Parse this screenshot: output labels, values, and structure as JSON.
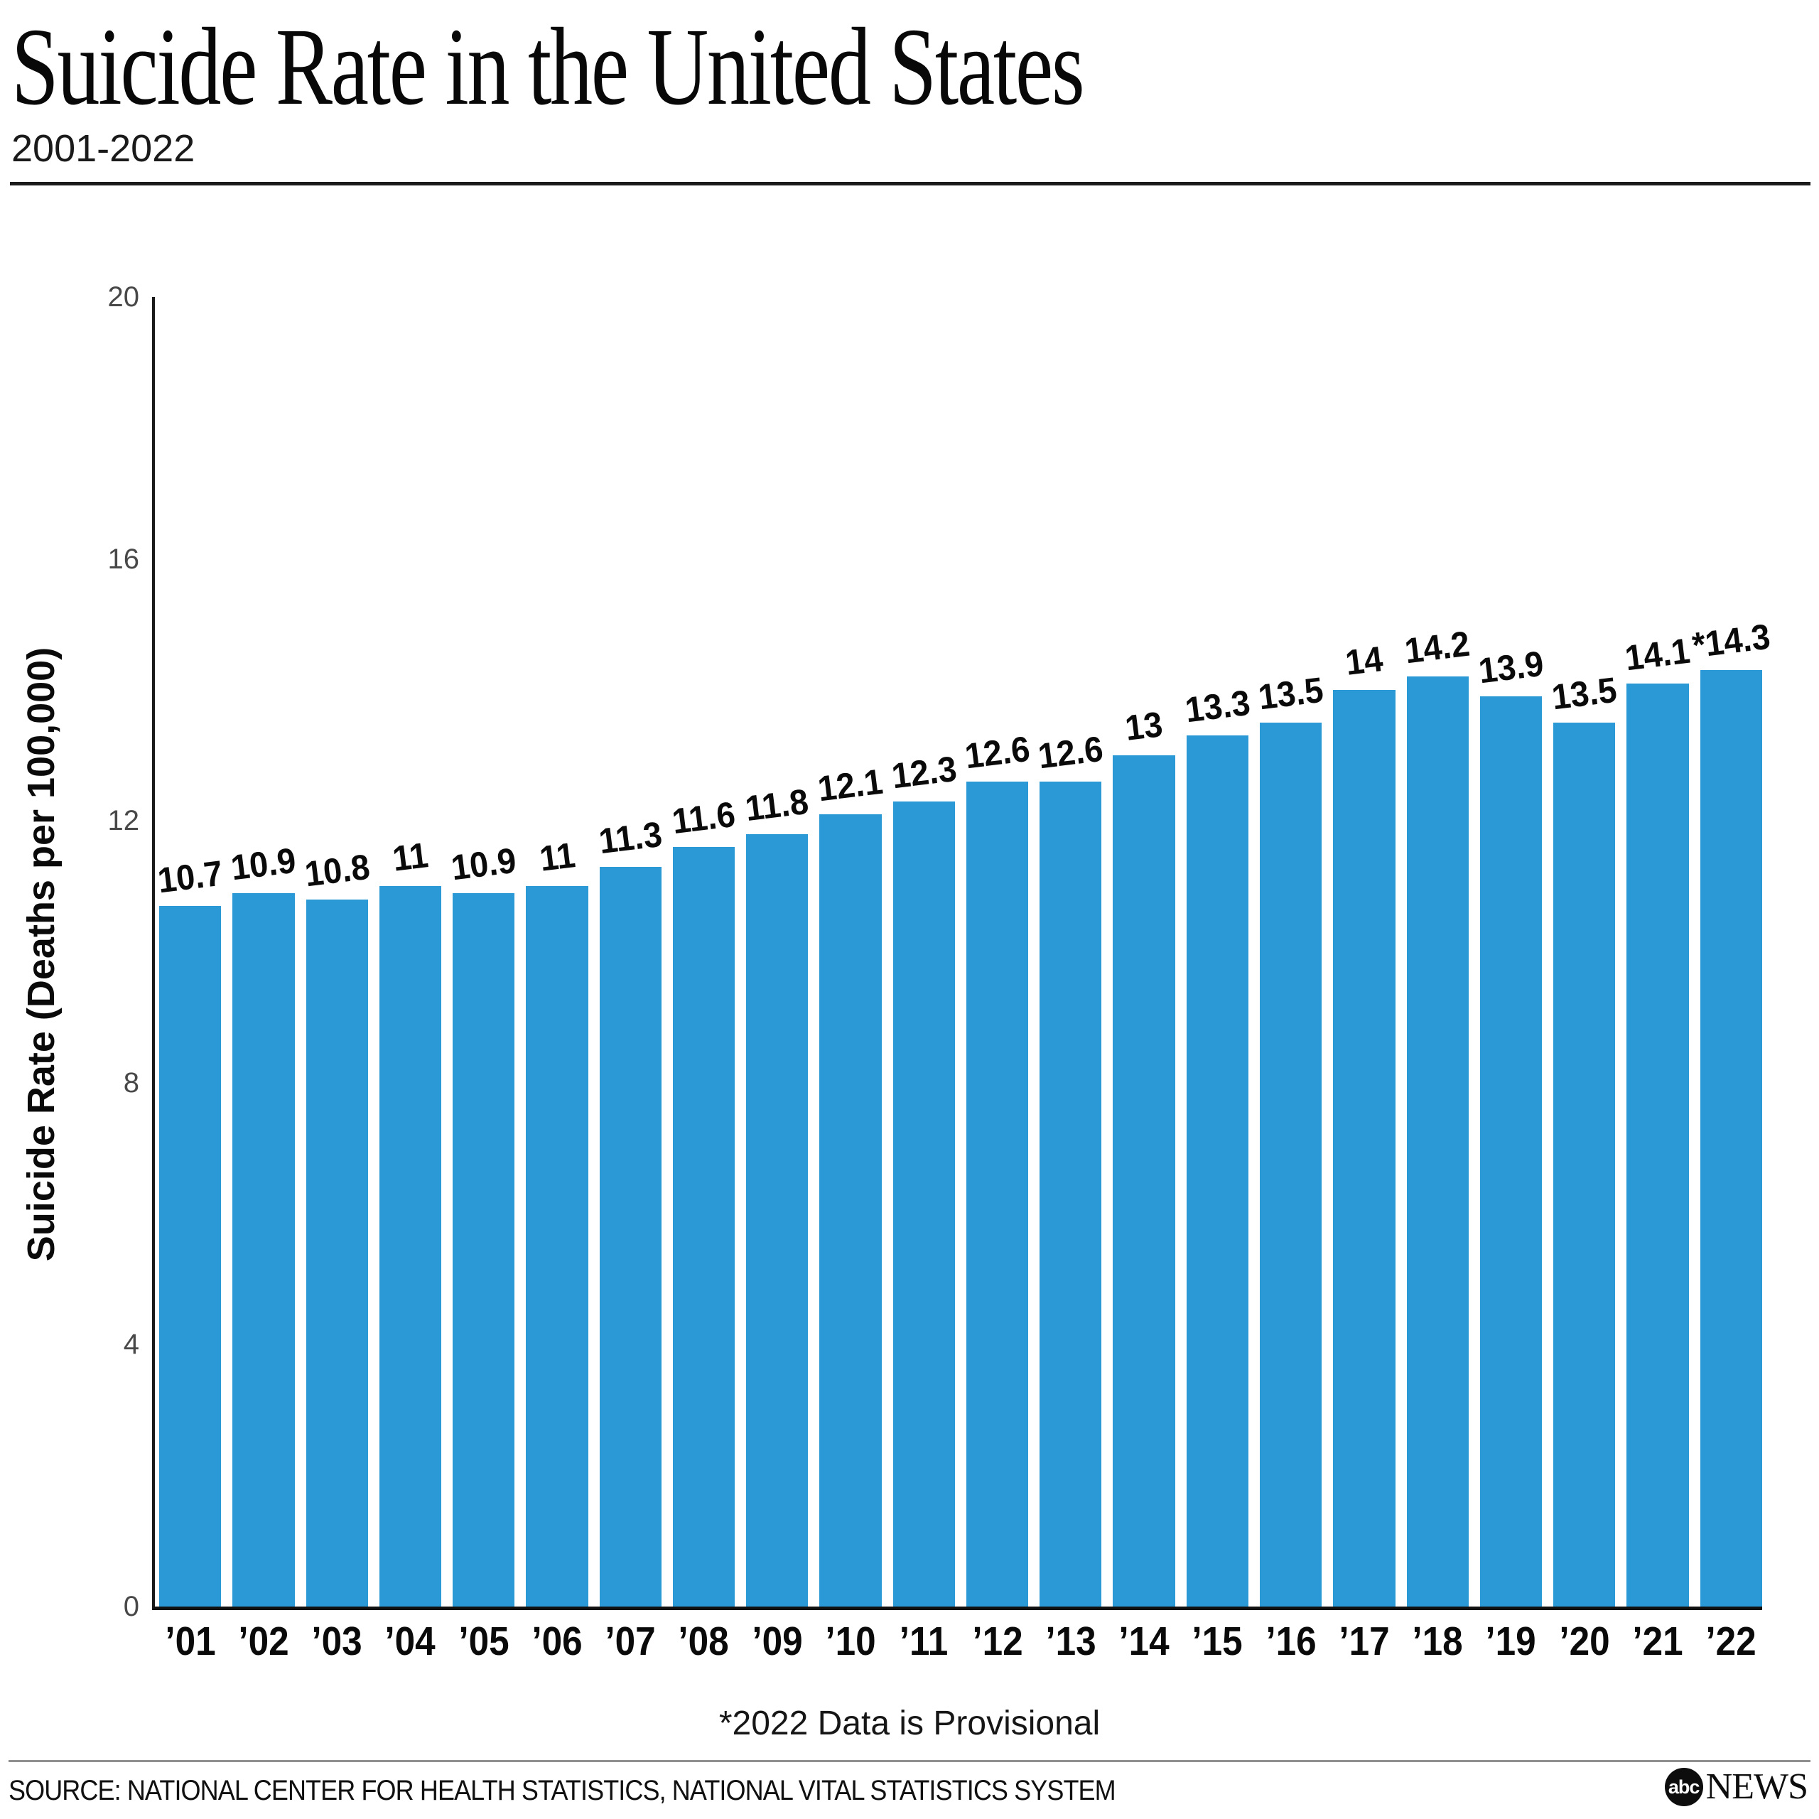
{
  "header": {
    "title": "Suicide Rate in the United States",
    "subtitle": "2001-2022"
  },
  "chart_data": {
    "type": "bar",
    "title": "Suicide Rate in the United States",
    "subtitle": "2001-2022",
    "categories": [
      "’01",
      "’02",
      "’03",
      "’04",
      "’05",
      "’06",
      "’07",
      "’08",
      "’09",
      "’10",
      "’11",
      "’12",
      "’13",
      "’14",
      "’15",
      "’16",
      "’17",
      "’18",
      "’19",
      "’20",
      "’21",
      "’22"
    ],
    "values": [
      10.7,
      10.9,
      10.8,
      11,
      10.9,
      11,
      11.3,
      11.6,
      11.8,
      12.1,
      12.3,
      12.6,
      12.6,
      13,
      13.3,
      13.5,
      14,
      14.2,
      13.9,
      13.5,
      14.1,
      14.3
    ],
    "bar_labels": [
      "10.7",
      "10.9",
      "10.8",
      "11",
      "10.9",
      "11",
      "11.3",
      "11.6",
      "11.8",
      "12.1",
      "12.3",
      "12.6",
      "12.6",
      "13",
      "13.3",
      "13.5",
      "14",
      "14.2",
      "13.9",
      "13.5",
      "14.1",
      "*14.3"
    ],
    "xlabel": "",
    "ylabel": "Suicide Rate (Deaths per 100,000)",
    "ylim": [
      0,
      20
    ],
    "yticks": [
      0,
      4,
      8,
      12,
      16,
      20
    ],
    "grid": false,
    "legend": false,
    "bar_color": "#2B99D6"
  },
  "footnote": {
    "text": "*2022 Data is Provisional"
  },
  "source": {
    "text": "SOURCE: NATIONAL CENTER FOR HEALTH STATISTICS, NATIONAL VITAL STATISTICS SYSTEM"
  },
  "logo": {
    "circle_text": "abc",
    "wordmark": "NEWS"
  }
}
